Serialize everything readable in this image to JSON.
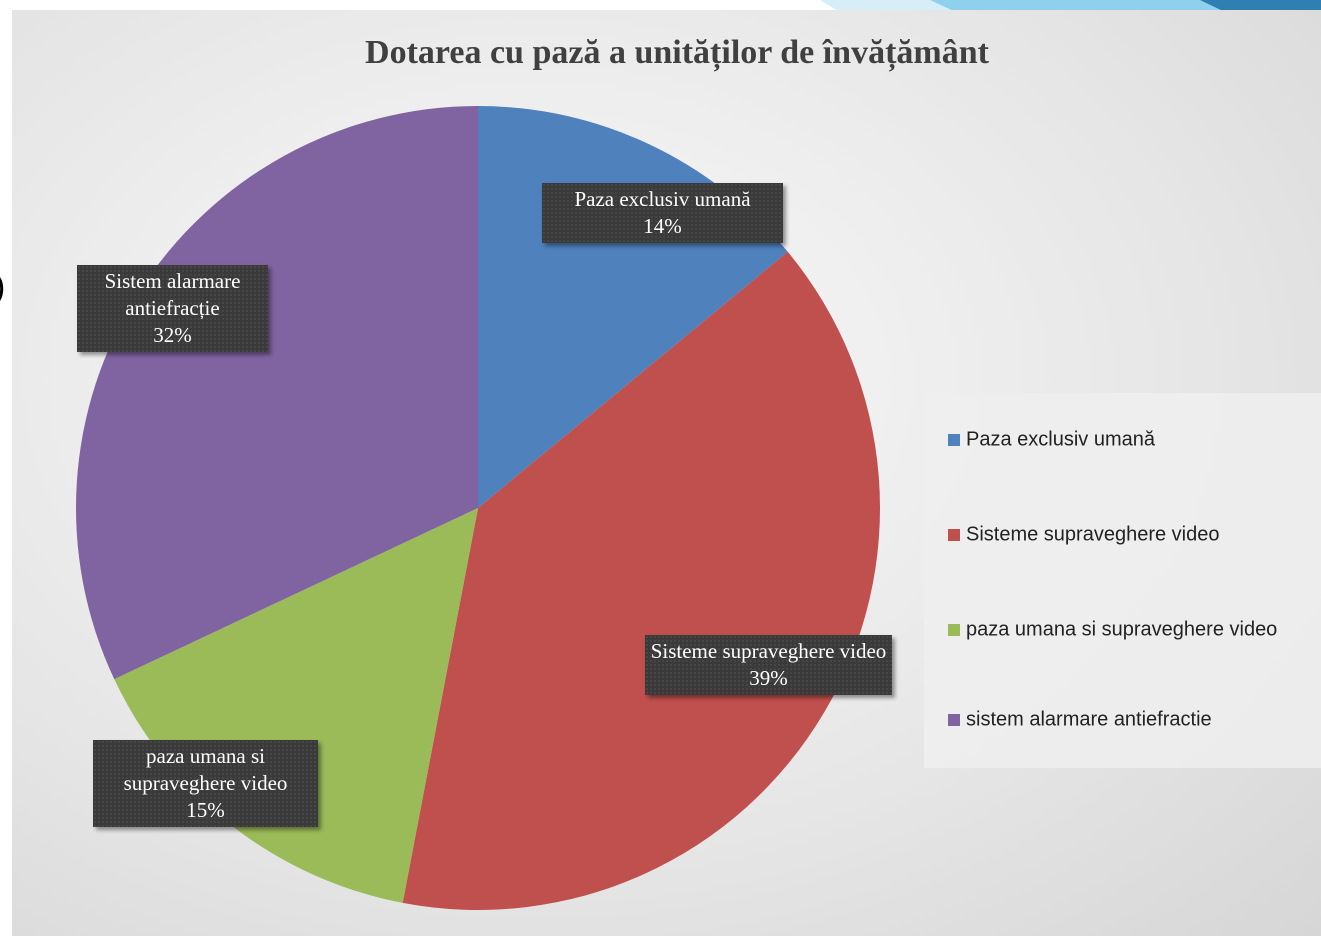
{
  "slide_fragment": ")",
  "chart_data": {
    "type": "pie",
    "title": "Dotarea cu pază a unităților de învățământ",
    "categories": [
      "Paza exclusiv umană",
      "Sisteme supraveghere video",
      "paza umana si supraveghere video",
      "sistem alarmare antiefractie"
    ],
    "slice_labels": [
      "Paza exclusiv umană",
      "Sisteme supraveghere video",
      "paza umana si supraveghere video",
      "Sistem alarmare antiefracție"
    ],
    "values": [
      14,
      39,
      15,
      32
    ],
    "value_labels": [
      "14%",
      "39%",
      "15%",
      "32%"
    ],
    "colors": [
      "#4f81bd",
      "#c0504d",
      "#9bbb59",
      "#8064a2"
    ],
    "legend": "right"
  }
}
